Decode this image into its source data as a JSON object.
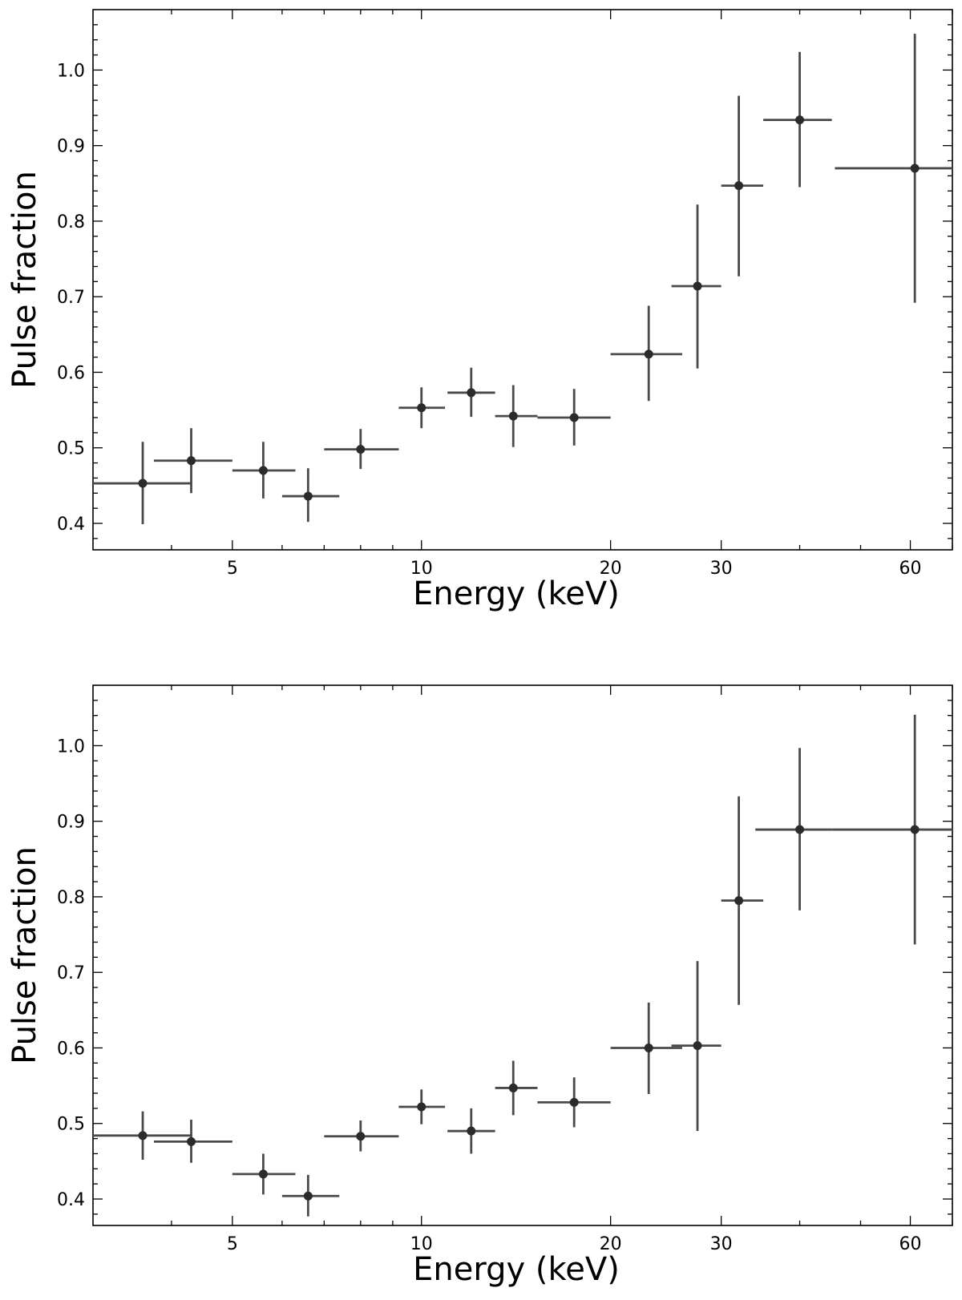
{
  "chart_data": [
    {
      "type": "scatter",
      "xlabel": "Energy (keV)",
      "ylabel": "Pulse fraction",
      "x_scale": "log",
      "xlim": [
        3,
        70
      ],
      "ylim": [
        0.365,
        1.08
      ],
      "x_ticks": [
        5,
        10,
        20,
        30,
        60
      ],
      "y_ticks": [
        0.4,
        0.5,
        0.6,
        0.7,
        0.8,
        0.9,
        1.0
      ],
      "color": "#4a4a4a",
      "points": [
        {
          "x": 3.6,
          "xlo": 3.0,
          "xhi": 4.3,
          "y": 0.453,
          "ylo": 0.399,
          "yhi": 0.508
        },
        {
          "x": 4.3,
          "xlo": 3.75,
          "xhi": 5.0,
          "y": 0.483,
          "ylo": 0.44,
          "yhi": 0.526
        },
        {
          "x": 5.6,
          "xlo": 5.0,
          "xhi": 6.3,
          "y": 0.47,
          "ylo": 0.433,
          "yhi": 0.508
        },
        {
          "x": 6.6,
          "xlo": 6.0,
          "xhi": 7.4,
          "y": 0.436,
          "ylo": 0.402,
          "yhi": 0.473
        },
        {
          "x": 8.0,
          "xlo": 7.0,
          "xhi": 9.2,
          "y": 0.498,
          "ylo": 0.472,
          "yhi": 0.525
        },
        {
          "x": 10.0,
          "xlo": 9.2,
          "xhi": 10.9,
          "y": 0.553,
          "ylo": 0.526,
          "yhi": 0.58
        },
        {
          "x": 12.0,
          "xlo": 11.0,
          "xhi": 13.1,
          "y": 0.573,
          "ylo": 0.541,
          "yhi": 0.606
        },
        {
          "x": 14.0,
          "xlo": 13.1,
          "xhi": 15.3,
          "y": 0.542,
          "ylo": 0.501,
          "yhi": 0.583
        },
        {
          "x": 17.5,
          "xlo": 15.3,
          "xhi": 20.0,
          "y": 0.54,
          "ylo": 0.503,
          "yhi": 0.578
        },
        {
          "x": 23.0,
          "xlo": 20.0,
          "xhi": 26.0,
          "y": 0.624,
          "ylo": 0.562,
          "yhi": 0.688
        },
        {
          "x": 27.5,
          "xlo": 25.0,
          "xhi": 30.0,
          "y": 0.714,
          "ylo": 0.605,
          "yhi": 0.822
        },
        {
          "x": 32.0,
          "xlo": 30.0,
          "xhi": 35.0,
          "y": 0.847,
          "ylo": 0.727,
          "yhi": 0.966
        },
        {
          "x": 40.0,
          "xlo": 35.0,
          "xhi": 45.0,
          "y": 0.934,
          "ylo": 0.845,
          "yhi": 1.024
        },
        {
          "x": 61.0,
          "xlo": 45.5,
          "xhi": 80.0,
          "y": 0.87,
          "ylo": 0.692,
          "yhi": 1.048
        }
      ]
    },
    {
      "type": "scatter",
      "xlabel": "Energy (keV)",
      "ylabel": "Pulse fraction",
      "x_scale": "log",
      "xlim": [
        3,
        70
      ],
      "ylim": [
        0.365,
        1.08
      ],
      "x_ticks": [
        5,
        10,
        20,
        30,
        60
      ],
      "y_ticks": [
        0.4,
        0.5,
        0.6,
        0.7,
        0.8,
        0.9,
        1.0
      ],
      "color": "#4a4a4a",
      "points": [
        {
          "x": 3.6,
          "xlo": 3.0,
          "xhi": 4.3,
          "y": 0.484,
          "ylo": 0.452,
          "yhi": 0.516
        },
        {
          "x": 4.3,
          "xlo": 3.75,
          "xhi": 5.0,
          "y": 0.476,
          "ylo": 0.448,
          "yhi": 0.505
        },
        {
          "x": 5.6,
          "xlo": 5.0,
          "xhi": 6.3,
          "y": 0.433,
          "ylo": 0.406,
          "yhi": 0.46
        },
        {
          "x": 6.6,
          "xlo": 6.0,
          "xhi": 7.4,
          "y": 0.404,
          "ylo": 0.377,
          "yhi": 0.432
        },
        {
          "x": 8.0,
          "xlo": 7.0,
          "xhi": 9.2,
          "y": 0.483,
          "ylo": 0.463,
          "yhi": 0.504
        },
        {
          "x": 10.0,
          "xlo": 9.2,
          "xhi": 10.9,
          "y": 0.522,
          "ylo": 0.499,
          "yhi": 0.545
        },
        {
          "x": 12.0,
          "xlo": 11.0,
          "xhi": 13.1,
          "y": 0.49,
          "ylo": 0.46,
          "yhi": 0.52
        },
        {
          "x": 14.0,
          "xlo": 13.1,
          "xhi": 15.3,
          "y": 0.547,
          "ylo": 0.511,
          "yhi": 0.583
        },
        {
          "x": 17.5,
          "xlo": 15.3,
          "xhi": 20.0,
          "y": 0.528,
          "ylo": 0.495,
          "yhi": 0.561
        },
        {
          "x": 23.0,
          "xlo": 20.0,
          "xhi": 26.0,
          "y": 0.6,
          "ylo": 0.539,
          "yhi": 0.66
        },
        {
          "x": 27.5,
          "xlo": 25.0,
          "xhi": 30.0,
          "y": 0.603,
          "ylo": 0.49,
          "yhi": 0.715
        },
        {
          "x": 32.0,
          "xlo": 30.0,
          "xhi": 35.0,
          "y": 0.795,
          "ylo": 0.657,
          "yhi": 0.933
        },
        {
          "x": 40.0,
          "xlo": 34.0,
          "xhi": 45.0,
          "y": 0.889,
          "ylo": 0.782,
          "yhi": 0.997
        },
        {
          "x": 61.0,
          "xlo": 45.0,
          "xhi": 80.0,
          "y": 0.889,
          "ylo": 0.737,
          "yhi": 1.041
        }
      ]
    }
  ]
}
